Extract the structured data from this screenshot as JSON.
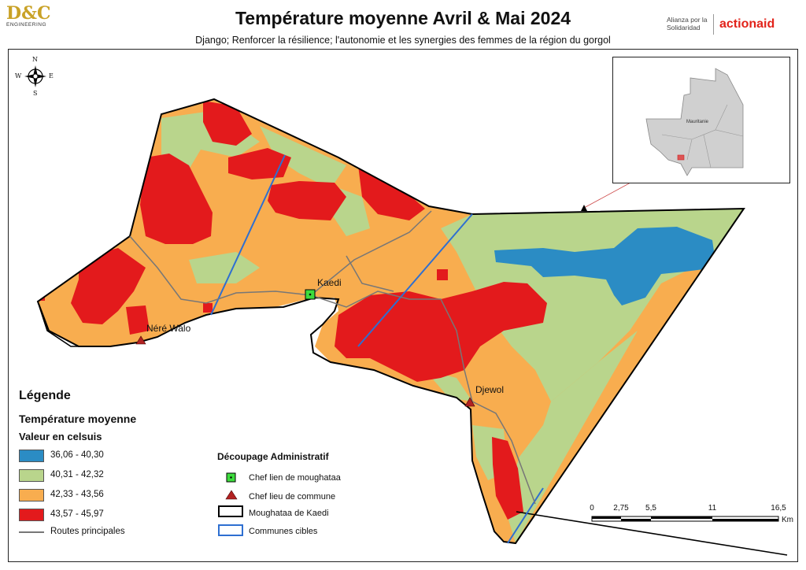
{
  "header": {
    "title": "Température moyenne Avril & Mai 2024",
    "subtitle": "Django; Renforcer la résilience; l'autonomie et les synergies des femmes de la région du gorgol"
  },
  "logos": {
    "dc_main": "D&C",
    "dc_sub": "ENGINEERING",
    "partner_line1": "Alianza por la",
    "partner_line2": "Solidaridad",
    "actionaid": "actionaid"
  },
  "inset": {
    "country_label": "Mauritanie"
  },
  "compass": {
    "n": "N",
    "s": "S",
    "e": "E",
    "w": "W"
  },
  "places": [
    {
      "name": "Kaedi",
      "type": "chef-lieu-moughataa"
    },
    {
      "name": "Néré Walo",
      "type": "chef-lieu-commune"
    },
    {
      "name": "Djewol",
      "type": "chef-lieu-commune"
    }
  ],
  "legend": {
    "title": "Légende",
    "subtitle": "Température moyenne",
    "unit": "Valeur en celsuis",
    "classes": [
      {
        "label": "36,06 - 40,30",
        "color": "#2b8cc4"
      },
      {
        "label": "40,31 - 42,32",
        "color": "#b9d58c"
      },
      {
        "label": "42,33 - 43,56",
        "color": "#f8ad4f"
      },
      {
        "label": "43,57 - 45,97",
        "color": "#e31a1c"
      }
    ],
    "roads_label": "Routes principales"
  },
  "admin_legend": {
    "title": "Découpage Administratif",
    "items": [
      "Chef lien de moughataa",
      "Chef lieu de commune",
      "Moughataa de Kaedi",
      "Communes cibles"
    ]
  },
  "scale_bar": {
    "ticks": [
      "0",
      "2,75",
      "5,5",
      "11",
      "16,5"
    ],
    "unit": "Km"
  }
}
